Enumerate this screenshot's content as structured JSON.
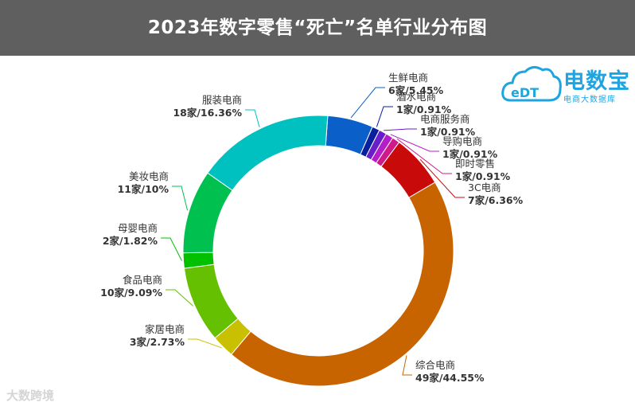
{
  "title": "2023年数字零售“死亡”名单行业分布图",
  "logo": {
    "name": "电数宝",
    "subtitle": "电商大数据库",
    "mark": "eDT",
    "color": "#1fa4e0"
  },
  "watermark": "大数跨境",
  "chart_data": {
    "type": "pie",
    "style": "donut",
    "title": "2023年数字零售“死亡”名单行业分布图",
    "slices": [
      {
        "name": "生鲜电商",
        "count": 6,
        "value": 5.45,
        "label": "6家/5.45%",
        "color": "#0a5fc8"
      },
      {
        "name": "酒水电商",
        "count": 1,
        "value": 0.91,
        "label": "1家/0.91%",
        "color": "#0a1ea0"
      },
      {
        "name": "电商服务商",
        "count": 1,
        "value": 0.91,
        "label": "1家/0.91%",
        "color": "#6a1ec8"
      },
      {
        "name": "导购电商",
        "count": 1,
        "value": 0.91,
        "label": "1家/0.91%",
        "color": "#b41ec8"
      },
      {
        "name": "即时零售",
        "count": 1,
        "value": 0.91,
        "label": "1家/0.91%",
        "color": "#d01a8a"
      },
      {
        "name": "3C电商",
        "count": 7,
        "value": 6.36,
        "label": "7家/6.36%",
        "color": "#c80a0a"
      },
      {
        "name": "综合电商",
        "count": 49,
        "value": 44.55,
        "label": "49家/44.55%",
        "color": "#c86400"
      },
      {
        "name": "家居电商",
        "count": 3,
        "value": 2.73,
        "label": "3家/2.73%",
        "color": "#c8c000"
      },
      {
        "name": "食品电商",
        "count": 10,
        "value": 9.09,
        "label": "10家/9.09%",
        "color": "#64c000"
      },
      {
        "name": "母婴电商",
        "count": 2,
        "value": 1.82,
        "label": "2家/1.82%",
        "color": "#00c000"
      },
      {
        "name": "美妆电商",
        "count": 11,
        "value": 10,
        "label": "11家/10%",
        "color": "#00c050"
      },
      {
        "name": "服装电商",
        "count": 18,
        "value": 16.36,
        "label": "18家/16.36%",
        "color": "#00c0c0"
      }
    ]
  }
}
